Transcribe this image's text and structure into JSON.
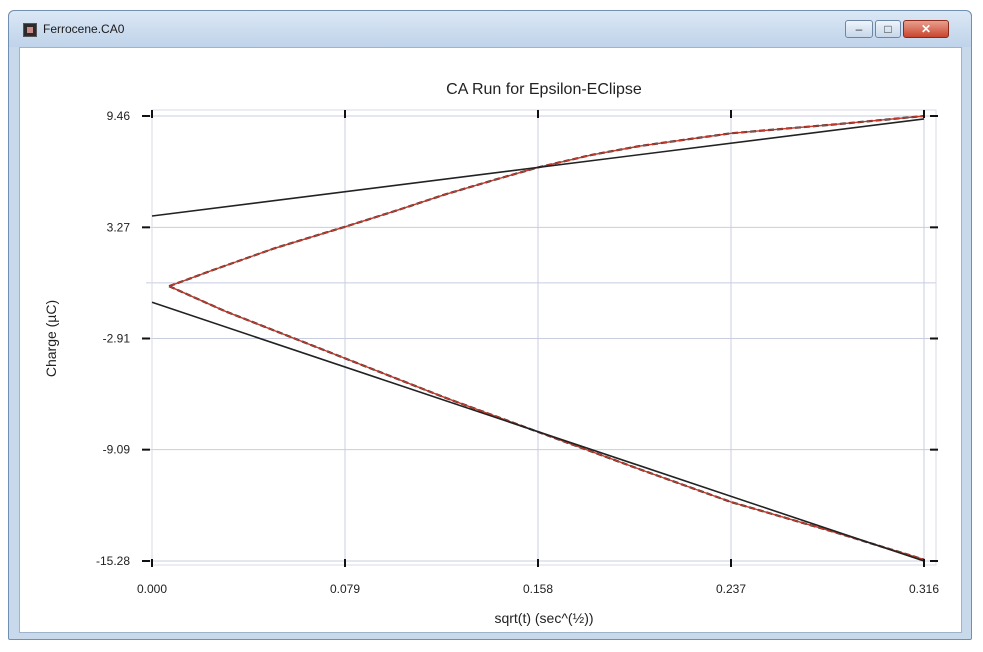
{
  "window": {
    "title": "Ferrocene.CA0",
    "icon": "app-icon",
    "controls": {
      "minimize_icon": "minimize-icon",
      "maximize_icon": "maximize-icon",
      "close_icon": "close-icon"
    }
  },
  "chart_data": {
    "type": "line",
    "title": "CA Run for Epsilon-EClipse",
    "xlabel": "sqrt(t) (sec^(½))",
    "ylabel": "Charge (µC)",
    "xlim": [
      0.0,
      0.316
    ],
    "ylim": [
      -15.28,
      9.46
    ],
    "xticks": [
      "0.000",
      "0.079",
      "0.158",
      "0.237",
      "0.316"
    ],
    "yticks": [
      "9.46",
      "3.27",
      "-2.91",
      "-9.09",
      "-15.28"
    ],
    "grid": true,
    "colors": {
      "data": "#c0392b",
      "fit": "#222222",
      "grid": "#c8cde0"
    },
    "series": [
      {
        "values": [
          [
            0.007,
            0.0
          ],
          [
            0.025,
            0.9
          ],
          [
            0.05,
            2.1
          ],
          [
            0.079,
            3.3
          ],
          [
            0.1,
            4.2
          ],
          [
            0.12,
            5.1
          ],
          [
            0.14,
            5.9
          ],
          [
            0.158,
            6.6
          ],
          [
            0.18,
            7.3
          ],
          [
            0.2,
            7.8
          ],
          [
            0.237,
            8.5
          ],
          [
            0.28,
            9.0
          ],
          [
            0.316,
            9.46
          ]
        ]
      },
      {
        "values": [
          [
            0.007,
            0.0
          ],
          [
            0.03,
            -1.4
          ],
          [
            0.06,
            -3.0
          ],
          [
            0.09,
            -4.6
          ],
          [
            0.12,
            -6.2
          ],
          [
            0.158,
            -8.1
          ],
          [
            0.2,
            -10.2
          ],
          [
            0.237,
            -12.0
          ],
          [
            0.28,
            -13.7
          ],
          [
            0.316,
            -15.2
          ]
        ]
      },
      {
        "values": [
          [
            0.0,
            3.9
          ],
          [
            0.316,
            9.3
          ]
        ]
      },
      {
        "values": [
          [
            0.0,
            -0.9
          ],
          [
            0.316,
            -15.28
          ]
        ]
      }
    ]
  }
}
